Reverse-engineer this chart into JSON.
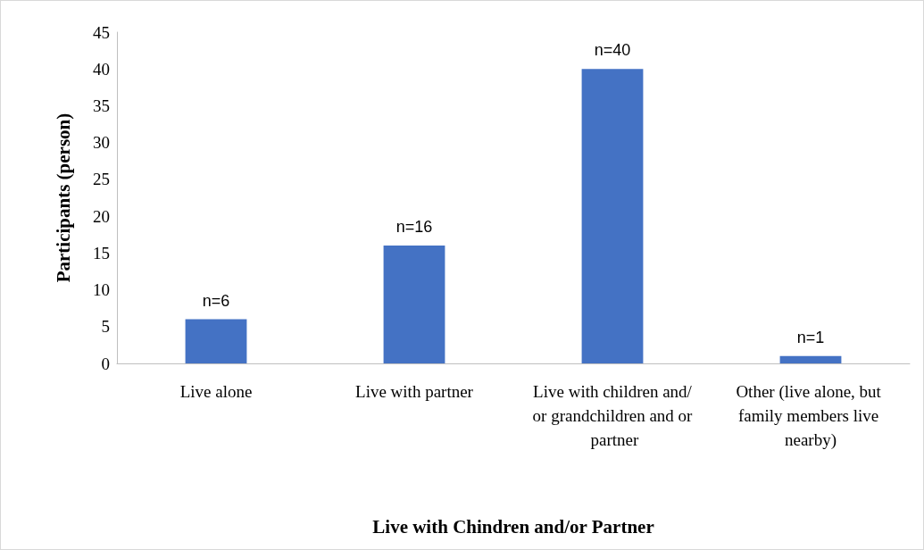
{
  "chart_data": {
    "type": "bar",
    "xlabel": "Live with Chindren and/or Partner",
    "ylabel": "Participants (person)",
    "categories": [
      "Live alone",
      "Live with partner",
      "Live with children and/or grandchildren and or partner",
      "Other (live alone, but family members live nearby)"
    ],
    "values": [
      6,
      16,
      40,
      1
    ],
    "color": "#4472c4",
    "value_labels": [
      "n=6",
      "n=16",
      "n=40",
      "n=1"
    ],
    "ylim": [
      0,
      45
    ],
    "yticks": [
      0,
      5,
      10,
      15,
      20,
      25,
      30,
      35,
      40,
      45
    ],
    "grid": false
  }
}
